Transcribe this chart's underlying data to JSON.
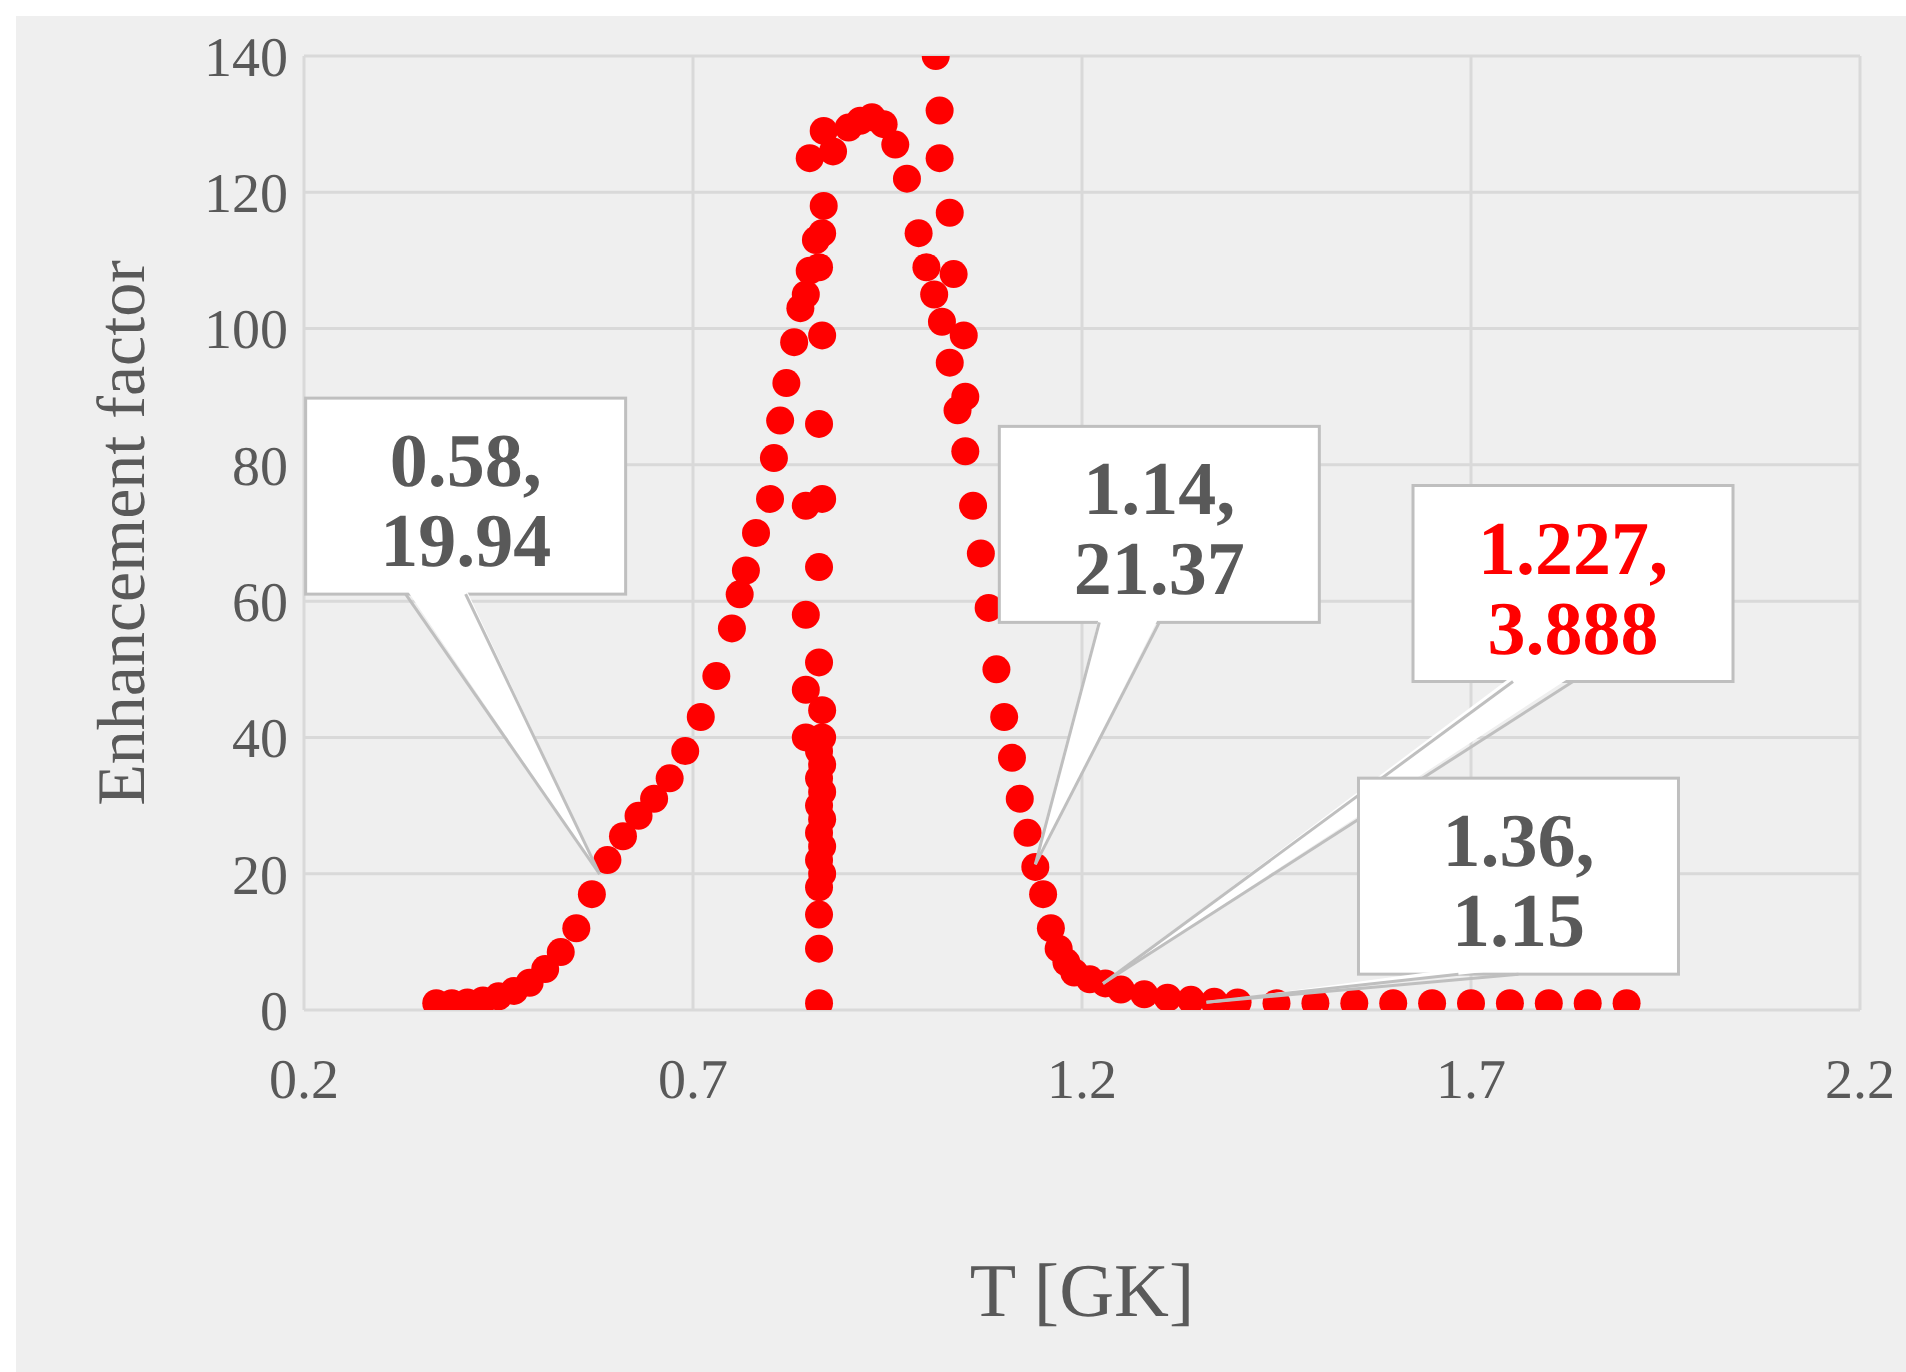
{
  "chart_data": {
    "type": "scatter",
    "xlabel": "T [GK]",
    "ylabel": "Enhancement factor",
    "xlim": [
      0.2,
      2.2
    ],
    "xticks": [
      0.2,
      0.7,
      1.2,
      1.7,
      2.2
    ],
    "ylim": [
      0,
      140
    ],
    "yticks": [
      0,
      20,
      40,
      60,
      80,
      100,
      120,
      140
    ],
    "grid": true,
    "marker": "circle",
    "series": [
      {
        "color": "#ff0000",
        "x": [
          0.37,
          0.39,
          0.41,
          0.43,
          0.45,
          0.47,
          0.49,
          0.51,
          0.53,
          0.55,
          0.57,
          0.59,
          0.61,
          0.63,
          0.65,
          0.67,
          0.69,
          0.71,
          0.73,
          0.75,
          0.76,
          0.768,
          0.781,
          0.799,
          0.804,
          0.812,
          0.82,
          0.83,
          0.838,
          0.85,
          0.858,
          0.868,
          0.85,
          0.868,
          0.88,
          0.9,
          0.915,
          0.93,
          0.945,
          0.96,
          0.975,
          0.99,
          1.0,
          1.01,
          1.02,
          1.03,
          1.04,
          1.05,
          1.06,
          1.07,
          1.08,
          1.09,
          1.1,
          1.11,
          1.12,
          1.13,
          1.14,
          1.15,
          1.16,
          1.17,
          1.18,
          1.19,
          1.21,
          1.23,
          1.25,
          1.28,
          1.31,
          1.34,
          1.37,
          1.4,
          1.45,
          1.5,
          1.55,
          1.6,
          1.65,
          1.7,
          1.75,
          1.8,
          1.85,
          1.9,
          0.862,
          0.862,
          0.862,
          0.862,
          0.862,
          0.862,
          0.862,
          0.862,
          0.862,
          0.862,
          0.862,
          0.862,
          0.862,
          0.866,
          0.866,
          0.866,
          0.866,
          0.866,
          0.866,
          0.866,
          0.866,
          0.866,
          0.866,
          0.845,
          0.845,
          0.845,
          0.845,
          0.845,
          1.012,
          1.017,
          1.017,
          1.03,
          1.035,
          1.048,
          1.05
        ],
        "values": [
          1,
          1,
          1.1,
          1.4,
          2,
          2.8,
          4,
          6,
          8.5,
          12,
          17,
          22,
          25.5,
          28.5,
          31,
          34,
          38,
          43,
          49,
          56,
          61,
          64.5,
          70,
          75,
          81,
          86.5,
          92,
          98,
          103,
          108.5,
          113,
          118,
          125,
          129,
          126,
          129.5,
          130.5,
          131,
          130,
          127,
          122,
          114,
          109,
          105,
          101,
          95,
          88,
          82,
          74,
          67,
          59,
          50,
          43,
          37,
          31,
          26,
          21,
          17,
          12,
          9,
          7,
          5.5,
          4.5,
          3.9,
          3,
          2.3,
          1.8,
          1.5,
          1.2,
          1.1,
          1,
          1,
          1,
          1,
          1,
          1,
          1,
          1,
          1,
          1,
          1,
          9,
          14,
          18,
          22,
          26,
          30,
          34,
          38,
          51,
          65,
          86,
          109,
          20,
          24,
          28,
          32,
          36,
          40,
          44,
          75,
          99,
          114,
          40,
          47,
          58,
          74,
          105,
          140,
          132,
          125,
          117,
          108,
          99,
          90
        ]
      }
    ],
    "annotations": [
      {
        "text": "0.58, 19.94",
        "x": 0.58,
        "y": 19.94
      },
      {
        "text": "1.14, 21.37",
        "x": 1.14,
        "y": 21.37
      },
      {
        "text": "1.227, 3.888",
        "x": 1.227,
        "y": 3.888
      },
      {
        "text": "1.36, 1.15",
        "x": 1.36,
        "y": 1.15
      }
    ]
  }
}
